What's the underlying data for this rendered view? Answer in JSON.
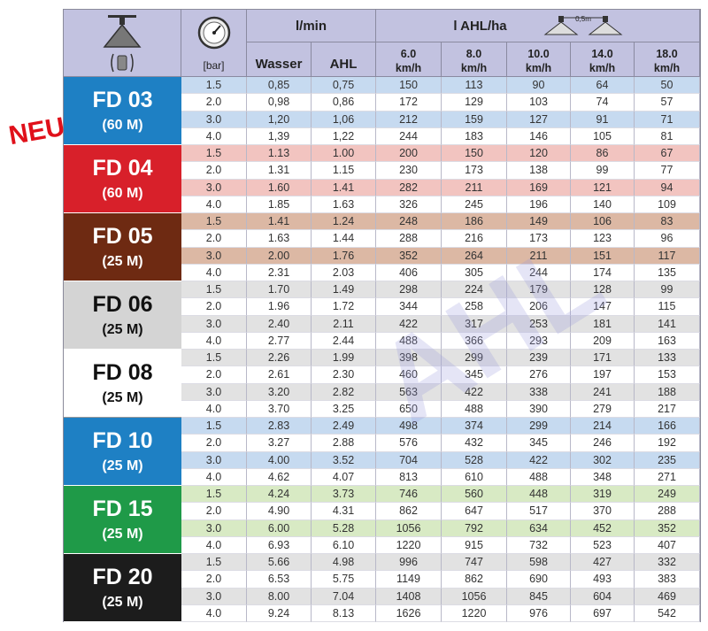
{
  "header": {
    "unit_pressure": "[bar]",
    "group_lmin": "l/min",
    "col_water": "Wasser",
    "col_ahl": "AHL",
    "group_lha": "l AHL/ha",
    "spacing_label": "0,5m",
    "speeds": [
      {
        "v": "6.0",
        "u": "km/h"
      },
      {
        "v": "8.0",
        "u": "km/h"
      },
      {
        "v": "10.0",
        "u": "km/h"
      },
      {
        "v": "14.0",
        "u": "km/h"
      },
      {
        "v": "18.0",
        "u": "km/h"
      }
    ]
  },
  "badge": "NEU",
  "watermark": "AHL",
  "nozzles": [
    {
      "name": "FD 03",
      "size": "(60 M)",
      "bg": "#1e80c4",
      "fg": "#ffffff",
      "stripe": "#c6daf0",
      "rows": [
        [
          "1.5",
          "0,85",
          "0,75",
          "150",
          "113",
          "90",
          "64",
          "50"
        ],
        [
          "2.0",
          "0,98",
          "0,86",
          "172",
          "129",
          "103",
          "74",
          "57"
        ],
        [
          "3.0",
          "1,20",
          "1,06",
          "212",
          "159",
          "127",
          "91",
          "71"
        ],
        [
          "4.0",
          "1,39",
          "1,22",
          "244",
          "183",
          "146",
          "105",
          "81"
        ]
      ]
    },
    {
      "name": "FD 04",
      "size": "(60 M)",
      "bg": "#d8202a",
      "fg": "#ffffff",
      "stripe": "#f2c4c0",
      "rows": [
        [
          "1.5",
          "1.13",
          "1.00",
          "200",
          "150",
          "120",
          "86",
          "67"
        ],
        [
          "2.0",
          "1.31",
          "1.15",
          "230",
          "173",
          "138",
          "99",
          "77"
        ],
        [
          "3.0",
          "1.60",
          "1.41",
          "282",
          "211",
          "169",
          "121",
          "94"
        ],
        [
          "4.0",
          "1.85",
          "1.63",
          "326",
          "245",
          "196",
          "140",
          "109"
        ]
      ]
    },
    {
      "name": "FD 05",
      "size": "(25 M)",
      "bg": "#6e2a12",
      "fg": "#ffffff",
      "stripe": "#dcb8a4",
      "rows": [
        [
          "1.5",
          "1.41",
          "1.24",
          "248",
          "186",
          "149",
          "106",
          "83"
        ],
        [
          "2.0",
          "1.63",
          "1.44",
          "288",
          "216",
          "173",
          "123",
          "96"
        ],
        [
          "3.0",
          "2.00",
          "1.76",
          "352",
          "264",
          "211",
          "151",
          "117"
        ],
        [
          "4.0",
          "2.31",
          "2.03",
          "406",
          "305",
          "244",
          "174",
          "135"
        ]
      ]
    },
    {
      "name": "FD 06",
      "size": "(25 M)",
      "bg": "#d4d4d4",
      "fg": "#111111",
      "stripe": "#e2e2e2",
      "rows": [
        [
          "1.5",
          "1.70",
          "1.49",
          "298",
          "224",
          "179",
          "128",
          "99"
        ],
        [
          "2.0",
          "1.96",
          "1.72",
          "344",
          "258",
          "206",
          "147",
          "115"
        ],
        [
          "3.0",
          "2.40",
          "2.11",
          "422",
          "317",
          "253",
          "181",
          "141"
        ],
        [
          "4.0",
          "2.77",
          "2.44",
          "488",
          "366",
          "293",
          "209",
          "163"
        ]
      ]
    },
    {
      "name": "FD 08",
      "size": "(25 M)",
      "bg": "#ffffff",
      "fg": "#111111",
      "stripe": "#e2e2e2",
      "rows": [
        [
          "1.5",
          "2.26",
          "1.99",
          "398",
          "299",
          "239",
          "171",
          "133"
        ],
        [
          "2.0",
          "2.61",
          "2.30",
          "460",
          "345",
          "276",
          "197",
          "153"
        ],
        [
          "3.0",
          "3.20",
          "2.82",
          "563",
          "422",
          "338",
          "241",
          "188"
        ],
        [
          "4.0",
          "3.70",
          "3.25",
          "650",
          "488",
          "390",
          "279",
          "217"
        ]
      ]
    },
    {
      "name": "FD 10",
      "size": "(25 M)",
      "bg": "#1e80c4",
      "fg": "#ffffff",
      "stripe": "#c6daf0",
      "rows": [
        [
          "1.5",
          "2.83",
          "2.49",
          "498",
          "374",
          "299",
          "214",
          "166"
        ],
        [
          "2.0",
          "3.27",
          "2.88",
          "576",
          "432",
          "345",
          "246",
          "192"
        ],
        [
          "3.0",
          "4.00",
          "3.52",
          "704",
          "528",
          "422",
          "302",
          "235"
        ],
        [
          "4.0",
          "4.62",
          "4.07",
          "813",
          "610",
          "488",
          "348",
          "271"
        ]
      ]
    },
    {
      "name": "FD 15",
      "size": "(25 M)",
      "bg": "#1f9a48",
      "fg": "#ffffff",
      "stripe": "#d8eac4",
      "rows": [
        [
          "1.5",
          "4.24",
          "3.73",
          "746",
          "560",
          "448",
          "319",
          "249"
        ],
        [
          "2.0",
          "4.90",
          "4.31",
          "862",
          "647",
          "517",
          "370",
          "288"
        ],
        [
          "3.0",
          "6.00",
          "5.28",
          "1056",
          "792",
          "634",
          "452",
          "352"
        ],
        [
          "4.0",
          "6.93",
          "6.10",
          "1220",
          "915",
          "732",
          "523",
          "407"
        ]
      ]
    },
    {
      "name": "FD 20",
      "size": "(25 M)",
      "bg": "#1c1c1c",
      "fg": "#ffffff",
      "stripe": "#e2e2e2",
      "rows": [
        [
          "1.5",
          "5.66",
          "4.98",
          "996",
          "747",
          "598",
          "427",
          "332"
        ],
        [
          "2.0",
          "6.53",
          "5.75",
          "1149",
          "862",
          "690",
          "493",
          "383"
        ],
        [
          "3.0",
          "8.00",
          "7.04",
          "1408",
          "1056",
          "845",
          "604",
          "469"
        ],
        [
          "4.0",
          "9.24",
          "8.13",
          "1626",
          "1220",
          "976",
          "697",
          "542"
        ]
      ]
    }
  ]
}
